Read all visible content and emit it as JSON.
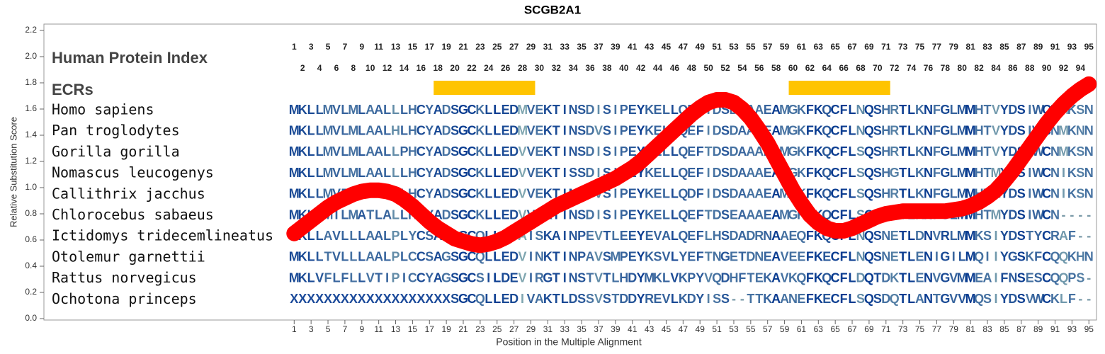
{
  "chart_data": {
    "type": "line",
    "title": "SCGB2A1",
    "xlabel": "Position in the Multiple Alignment",
    "ylabel": "Relative Substitution Score",
    "xlim": [
      -28.6,
      95.9
    ],
    "ylim": [
      0,
      2.2
    ],
    "yticks": [
      {
        "value": 0,
        "label": "0.0"
      },
      0.2,
      0.4,
      0.6,
      0.8,
      {
        "value": 1,
        "label": "1.0"
      },
      1.2,
      1.4,
      1.6,
      1.8,
      {
        "value": 2,
        "label": "2.0"
      },
      2.2
    ],
    "xticks": [
      1,
      3,
      5,
      7,
      9,
      11,
      13,
      15,
      17,
      19,
      21,
      23,
      25,
      27,
      29,
      31,
      33,
      35,
      37,
      39,
      41,
      43,
      45,
      47,
      49,
      51,
      53,
      55,
      57,
      59,
      61,
      63,
      65,
      67,
      69,
      71,
      73,
      75,
      77,
      79,
      81,
      83,
      85,
      87,
      89,
      91,
      93,
      95
    ],
    "x": [
      1,
      2,
      3,
      4,
      5,
      6,
      7,
      8,
      9,
      10,
      11,
      12,
      13,
      14,
      15,
      16,
      17,
      18,
      19,
      20,
      21,
      22,
      23,
      24,
      25,
      26,
      27,
      28,
      29,
      30,
      31,
      32,
      33,
      34,
      35,
      36,
      37,
      38,
      39,
      40,
      41,
      42,
      43,
      44,
      45,
      46,
      47,
      48,
      49,
      50,
      51,
      52,
      53,
      54,
      55,
      56,
      57,
      58,
      59,
      60,
      61,
      62,
      63,
      64,
      65,
      66,
      67,
      68,
      69,
      70,
      71,
      72,
      73,
      74,
      75,
      76,
      77,
      78,
      79,
      80,
      81,
      82,
      83,
      84,
      85,
      86,
      87,
      88,
      89,
      90,
      91,
      92,
      93,
      94,
      95
    ],
    "series": [
      {
        "color": "#ff0000",
        "values": [
          0.65,
          0.7,
          0.75,
          0.8,
          0.85,
          0.89,
          0.92,
          0.95,
          0.97,
          0.98,
          0.98,
          0.97,
          0.95,
          0.91,
          0.86,
          0.8,
          0.74,
          0.69,
          0.65,
          0.61,
          0.59,
          0.57,
          0.56,
          0.57,
          0.59,
          0.62,
          0.66,
          0.7,
          0.74,
          0.78,
          0.82,
          0.86,
          0.89,
          0.92,
          0.95,
          0.98,
          1.01,
          1.04,
          1.07,
          1.11,
          1.15,
          1.2,
          1.26,
          1.32,
          1.38,
          1.44,
          1.5,
          1.56,
          1.61,
          1.65,
          1.67,
          1.67,
          1.65,
          1.6,
          1.53,
          1.44,
          1.34,
          1.22,
          1.1,
          0.98,
          0.88,
          0.79,
          0.73,
          0.69,
          0.67,
          0.67,
          0.69,
          0.72,
          0.75,
          0.78,
          0.8,
          0.81,
          0.82,
          0.82,
          0.82,
          0.82,
          0.82,
          0.82,
          0.83,
          0.84,
          0.86,
          0.89,
          0.93,
          0.98,
          1.05,
          1.13,
          1.22,
          1.31,
          1.4,
          1.49,
          1.57,
          1.64,
          1.7,
          1.75,
          1.79
        ]
      }
    ],
    "index_label": "Human Protein Index",
    "ecr_label": "ECRs",
    "ecr_color": "#ffc400",
    "ecrs": [
      {
        "start": 18,
        "end": 29
      },
      {
        "start": 60,
        "end": 71
      }
    ],
    "alignment": [
      {
        "species": "Homo sapiens",
        "sequence": "MKLLMVLMLAALLLHCYADSGCKLLEDMVEKTINSDISIPEYKELLQEFIDSDAAAEAMGKFKQCFLNQSHRTLKNFGLMMHTVYDSIWCNMKSN"
      },
      {
        "species": "Pan troglodytes",
        "sequence": "MKLLMVLMLAALHLHCYADSGCKLLEDMVEKTINSDVSIPEYKELLQEFIDSDAAAEAMGKFKQCFLNQSHRTLKNFGLMMHTVYDSIWCNMKNN"
      },
      {
        "species": "Gorilla gorilla",
        "sequence": "MKLLMVLMLAALLPHCYADSGCKLLEDVVEKTINSDISIPEYKELLQEFTDSDAAAEAMGKFKQCFLSQSHRTLKNFGLMMHTVYDSIWCNMKSN"
      },
      {
        "species": "Nomascus leucogenys",
        "sequence": "MKLLMVLMLAALLLHCYADSGCKLLEDVVEKTISSDISIPEYKELLQEFIDSDAAAEAMGKFKQCFLSQSHGTLKNFGLMMHTMYDSIWCNIKSN"
      },
      {
        "species": "Callithrix jacchus",
        "sequence": "MKLLMVFMLVALPLHCYADSGCKLLEDVVEKTINSDVSIPEYKELLQDFIDSDAAAEAMGKFKQCFLSQSHRTLKNFGLMMHTMYDSIWCNIKSN"
      },
      {
        "species": "Chlorocebus sabaeus",
        "sequence": "MKLLMILMATLALLHCYADSGCKLLEDVVEKTINSDISIPEYKELLQEFTDSEAAAEAMGKFKQCFLSQSHRTLKNFGLMMHTMYDSIWCN----"
      },
      {
        "species": "Ictidomys tridecemlineatus",
        "sequence": "MKLLAVLLLAALPLYCSAGAGCQLLEDAISKAINPEVTLEEYEVALQEFLHSDADRNAAEQFKQCFLNQSNETLDNVRLMMKSIYDSTYCRAF--"
      },
      {
        "species": "Otolemur garnettii",
        "sequence": "MKLLTVLLLAALPLCCSAGSGCQLLEDVINKTINPAVSMPEYKSVLYEFTNGETDNEAVEEFKECFLNQSNETLENIGILMQIIYGSKFCQQKHN"
      },
      {
        "species": "Rattus norvegicus",
        "sequence": "MKLVFLFLLVTIPICCYAGSGCSILDEVIRGTINSTVTLHDYMKLVKPYVQDHFTEKAVKQFKQCFLDQTDKTLENVGVMMEAIFNSESCQQPS-"
      },
      {
        "species": "Ochotona princeps",
        "sequence": "XXXXXXXXXXXXXXXXXXXSGCQLLEDIVAKTLDSSVSTDDYREVLKDYISS--TTKAANEFKECFLSQSDQTLANTGVVMQSIYDSVWCKLF--"
      }
    ]
  }
}
